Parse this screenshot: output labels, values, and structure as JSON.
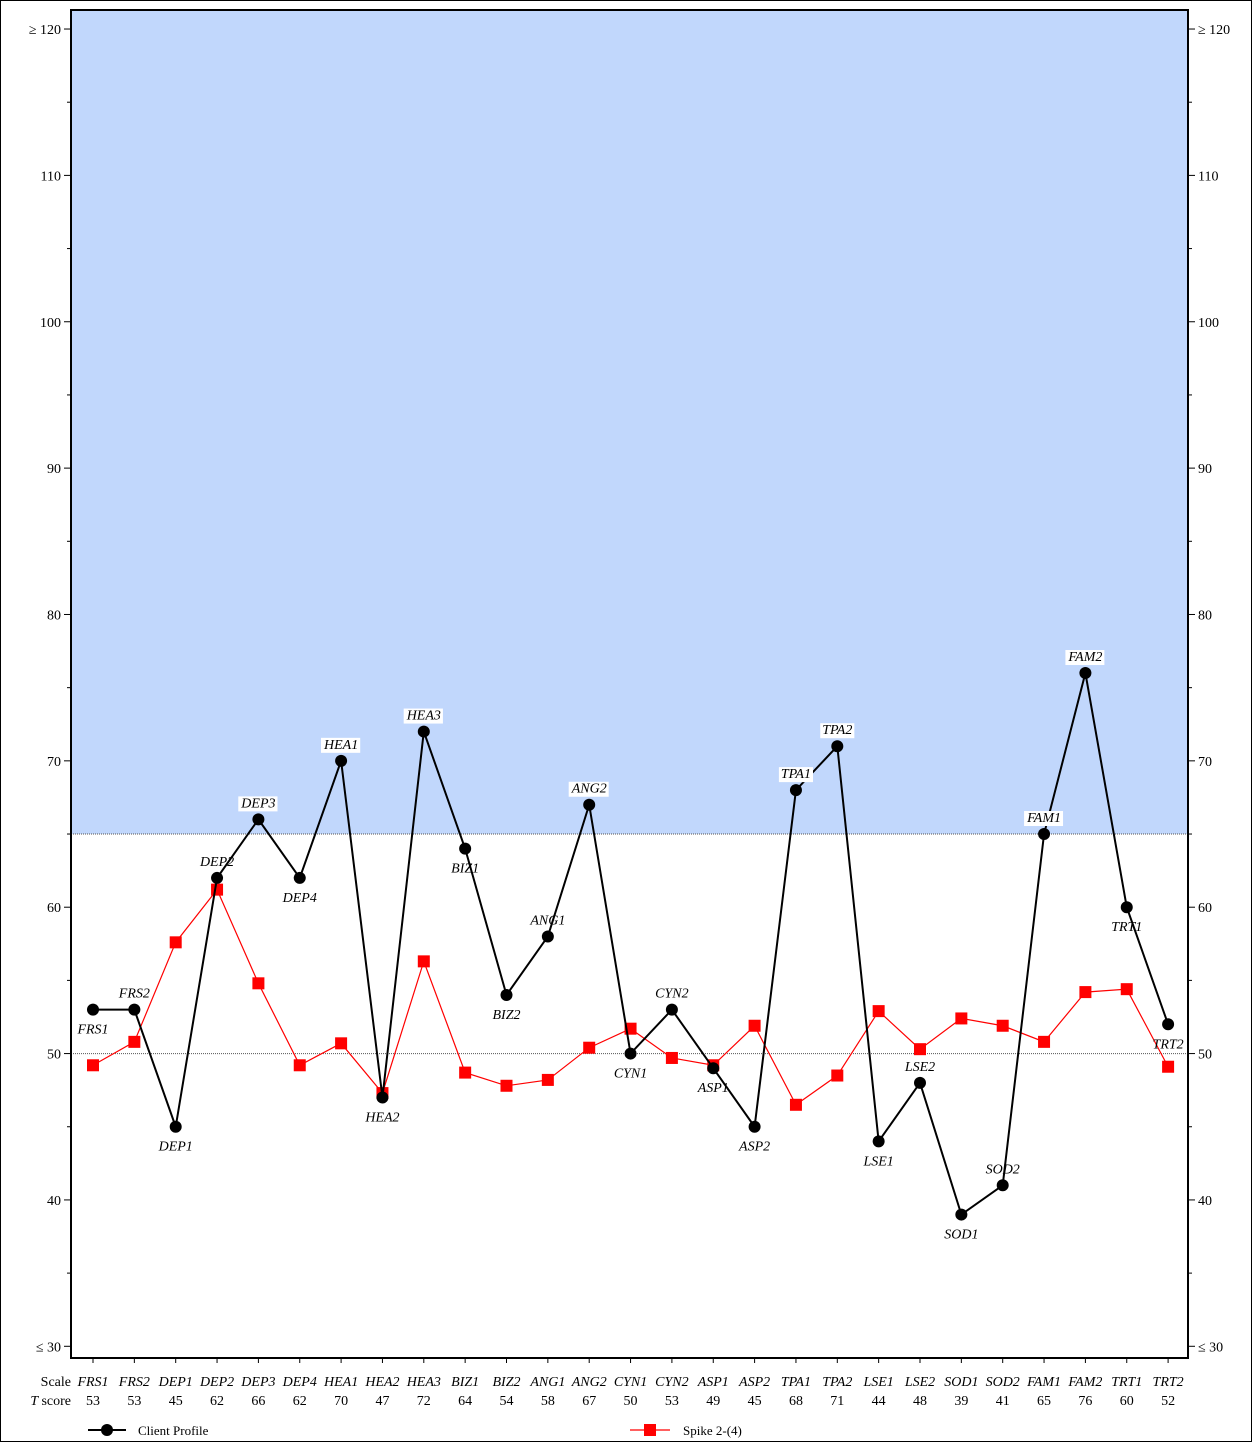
{
  "chart_data": {
    "type": "line",
    "categories": [
      "FRS1",
      "FRS2",
      "DEP1",
      "DEP2",
      "DEP3",
      "DEP4",
      "HEA1",
      "HEA2",
      "HEA3",
      "BIZ1",
      "BIZ2",
      "ANG1",
      "ANG2",
      "CYN1",
      "CYN2",
      "ASP1",
      "ASP2",
      "TPA1",
      "TPA2",
      "LSE1",
      "LSE2",
      "SOD1",
      "SOD2",
      "FAM1",
      "FAM2",
      "TRT1",
      "TRT2"
    ],
    "series": [
      {
        "name": "Client Profile",
        "values": [
          53,
          53,
          45,
          62,
          66,
          62,
          70,
          47,
          72,
          64,
          54,
          58,
          67,
          50,
          53,
          49,
          45,
          68,
          71,
          44,
          48,
          39,
          41,
          65,
          76,
          60,
          52
        ],
        "color": "#000000",
        "marker": "circle"
      },
      {
        "name": "Spike 2-(4)",
        "values": [
          49.2,
          50.8,
          57.6,
          61.2,
          54.8,
          49.2,
          50.7,
          47.3,
          56.3,
          48.7,
          47.8,
          48.2,
          50.4,
          51.7,
          49.7,
          49.2,
          51.9,
          46.5,
          48.5,
          52.9,
          50.3,
          52.4,
          51.9,
          50.8,
          54.2,
          54.4,
          49.1
        ],
        "color": "#ff0000",
        "marker": "square"
      }
    ],
    "ylim": [
      30,
      120
    ],
    "yticks": [
      30,
      40,
      50,
      60,
      70,
      80,
      90,
      100,
      110,
      120
    ],
    "ytick_labels": [
      "≤ 30",
      "40",
      "50",
      "60",
      "70",
      "80",
      "90",
      "100",
      "110",
      "≥ 120"
    ],
    "shaded_region": {
      "from": 65,
      "to": 120,
      "color": "#c1d7fc"
    },
    "reference_lines": [
      50,
      65
    ],
    "scale_row_label": "Scale",
    "score_row_label": "T score",
    "grid": false,
    "legend": "bottom"
  }
}
